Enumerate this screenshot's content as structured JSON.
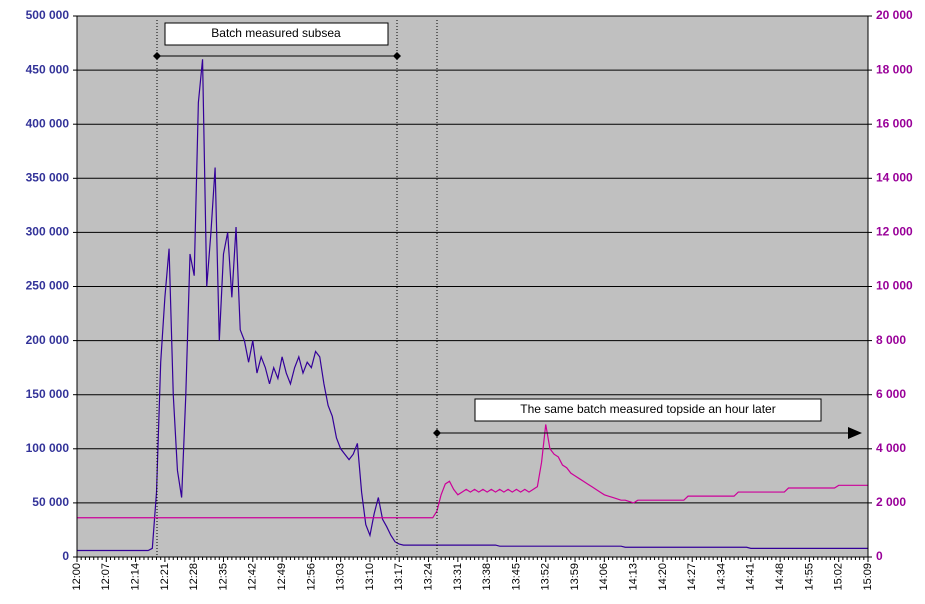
{
  "chart_data": {
    "type": "line",
    "annotations": [
      "Batch measured subsea",
      "The same batch measured topside an hour later"
    ],
    "categories": [
      "12:00",
      null,
      null,
      null,
      null,
      null,
      null,
      "12:07",
      null,
      null,
      null,
      null,
      null,
      null,
      "12:14",
      null,
      null,
      null,
      null,
      null,
      null,
      "12:21",
      null,
      null,
      null,
      null,
      null,
      null,
      "12:28",
      null,
      null,
      null,
      null,
      null,
      null,
      "12:35",
      null,
      null,
      null,
      null,
      null,
      null,
      "12:42",
      null,
      null,
      null,
      null,
      null,
      null,
      "12:49",
      null,
      null,
      null,
      null,
      null,
      null,
      "12:56",
      null,
      null,
      null,
      null,
      null,
      null,
      "13:03",
      null,
      null,
      null,
      null,
      null,
      null,
      "13:10",
      null,
      null,
      null,
      null,
      null,
      null,
      "13:17",
      null,
      null,
      null,
      null,
      null,
      null,
      "13:24",
      null,
      null,
      null,
      null,
      null,
      null,
      "13:31",
      null,
      null,
      null,
      null,
      null,
      null,
      "13:38",
      null,
      null,
      null,
      null,
      null,
      null,
      "13:45",
      null,
      null,
      null,
      null,
      null,
      null,
      "13:52",
      null,
      null,
      null,
      null,
      null,
      null,
      "13:59",
      null,
      null,
      null,
      null,
      null,
      null,
      "14:06",
      null,
      null,
      null,
      null,
      null,
      null,
      "14:13",
      null,
      null,
      null,
      null,
      null,
      null,
      "14:20",
      null,
      null,
      null,
      null,
      null,
      null,
      "14:27",
      null,
      null,
      null,
      null,
      null,
      null,
      "14:34",
      null,
      null,
      null,
      null,
      null,
      null,
      "14:41",
      null,
      null,
      null,
      null,
      null,
      null,
      "14:48",
      null,
      null,
      null,
      null,
      null,
      null,
      "14:55",
      null,
      null,
      null,
      null,
      null,
      null,
      "15:02",
      null,
      null,
      null,
      null,
      null,
      null,
      "15:09"
    ],
    "series": [
      {
        "color": "#330099",
        "values": [
          6000,
          6000,
          6000,
          6000,
          6000,
          6000,
          6000,
          6000,
          6000,
          6000,
          6000,
          6000,
          6000,
          6000,
          6000,
          6000,
          6000,
          6000,
          8000,
          60000,
          180000,
          240000,
          285000,
          150000,
          80000,
          55000,
          150000,
          280000,
          260000,
          420000,
          460000,
          250000,
          300000,
          360000,
          200000,
          280000,
          300000,
          240000,
          305000,
          210000,
          200000,
          180000,
          200000,
          170000,
          185000,
          175000,
          160000,
          175000,
          165000,
          185000,
          170000,
          160000,
          175000,
          185000,
          170000,
          180000,
          175000,
          190000,
          185000,
          160000,
          140000,
          130000,
          110000,
          100000,
          95000,
          90000,
          95000,
          105000,
          60000,
          30000,
          20000,
          40000,
          55000,
          35000,
          28000,
          20000,
          14000,
          12000,
          11000,
          11000,
          11000,
          11000,
          11000,
          11000,
          11000,
          11000,
          11000,
          11000,
          11000,
          11000,
          11000,
          11000,
          11000,
          11000,
          11000,
          11000,
          11000,
          11000,
          11000,
          11000,
          11000,
          10000,
          10000,
          10000,
          10000,
          10000,
          10000,
          10000,
          10000,
          10000,
          10000,
          10000,
          10000,
          10000,
          10000,
          10000,
          10000,
          10000,
          10000,
          10000,
          10000,
          10000,
          10000,
          10000,
          10000,
          10000,
          10000,
          10000,
          10000,
          10000,
          10000,
          9000,
          9000,
          9000,
          9000,
          9000,
          9000,
          9000,
          9000,
          9000,
          9000,
          9000,
          9000,
          9000,
          9000,
          9000,
          9000,
          9000,
          9000,
          9000,
          9000,
          9000,
          9000,
          9000,
          9000,
          9000,
          9000,
          9000,
          9000,
          9000,
          9000,
          8000,
          8000,
          8000,
          8000,
          8000,
          8000,
          8000,
          8000,
          8000,
          8000,
          8000,
          8000,
          8000,
          8000,
          8000,
          8000,
          8000,
          8000,
          8000,
          8000,
          8000,
          8000,
          8000,
          8000,
          8000,
          8000,
          8000,
          8000,
          8000
        ]
      },
      {
        "color": "#cc0099",
        "axis": "y2",
        "values": [
          1450,
          1450,
          1450,
          1450,
          1450,
          1450,
          1450,
          1450,
          1450,
          1450,
          1450,
          1450,
          1450,
          1450,
          1450,
          1450,
          1450,
          1450,
          1450,
          1450,
          1450,
          1450,
          1450,
          1450,
          1450,
          1450,
          1450,
          1450,
          1450,
          1450,
          1450,
          1450,
          1450,
          1450,
          1450,
          1450,
          1450,
          1450,
          1450,
          1450,
          1450,
          1450,
          1450,
          1450,
          1450,
          1450,
          1450,
          1450,
          1450,
          1450,
          1450,
          1450,
          1450,
          1450,
          1450,
          1450,
          1450,
          1450,
          1450,
          1450,
          1450,
          1450,
          1450,
          1450,
          1450,
          1450,
          1450,
          1450,
          1450,
          1450,
          1450,
          1450,
          1450,
          1450,
          1450,
          1450,
          1450,
          1450,
          1450,
          1450,
          1450,
          1450,
          1450,
          1450,
          1450,
          1450,
          1700,
          2300,
          2700,
          2800,
          2500,
          2300,
          2400,
          2500,
          2400,
          2500,
          2400,
          2500,
          2400,
          2500,
          2400,
          2500,
          2400,
          2500,
          2400,
          2500,
          2400,
          2500,
          2400,
          2500,
          2600,
          3500,
          4900,
          4000,
          3800,
          3700,
          3400,
          3300,
          3100,
          3000,
          2900,
          2800,
          2700,
          2600,
          2500,
          2400,
          2300,
          2250,
          2200,
          2150,
          2100,
          2100,
          2050,
          2000,
          2100,
          2100,
          2100,
          2100,
          2100,
          2100,
          2100,
          2100,
          2100,
          2100,
          2100,
          2100,
          2250,
          2250,
          2250,
          2250,
          2250,
          2250,
          2250,
          2250,
          2250,
          2250,
          2250,
          2250,
          2400,
          2400,
          2400,
          2400,
          2400,
          2400,
          2400,
          2400,
          2400,
          2400,
          2400,
          2400,
          2550,
          2550,
          2550,
          2550,
          2550,
          2550,
          2550,
          2550,
          2550,
          2550,
          2550,
          2550,
          2650,
          2650,
          2650,
          2650,
          2650,
          2650,
          2650,
          2650
        ]
      }
    ],
    "ylim": [
      0,
      500000
    ],
    "yticks": [
      0,
      {
        "value": 50000,
        "label": "50 000"
      },
      {
        "value": 100000,
        "label": "100 000"
      },
      {
        "value": 150000,
        "label": "150 000"
      },
      {
        "value": 200000,
        "label": "200 000"
      },
      {
        "value": 250000,
        "label": "250 000"
      },
      {
        "value": 300000,
        "label": "300 000"
      },
      {
        "value": 350000,
        "label": "350 000"
      },
      {
        "value": 400000,
        "label": "400 000"
      },
      {
        "value": 450000,
        "label": "450 000"
      },
      {
        "value": 500000,
        "label": "500 000"
      }
    ],
    "y2lim": [
      0,
      20000
    ],
    "y2ticks": [
      0,
      {
        "value": 2000,
        "label": "2 000"
      },
      {
        "value": 4000,
        "label": "4 000"
      },
      {
        "value": 6000,
        "label": "6 000"
      },
      {
        "value": 8000,
        "label": "8 000"
      },
      {
        "value": 10000,
        "label": "10 000"
      },
      {
        "value": 12000,
        "label": "12 000"
      },
      {
        "value": 14000,
        "label": "14 000"
      },
      {
        "value": 16000,
        "label": "16 000"
      },
      {
        "value": 18000,
        "label": "18 000"
      },
      {
        "value": 20000,
        "label": "20 000"
      }
    ],
    "grid": true
  }
}
